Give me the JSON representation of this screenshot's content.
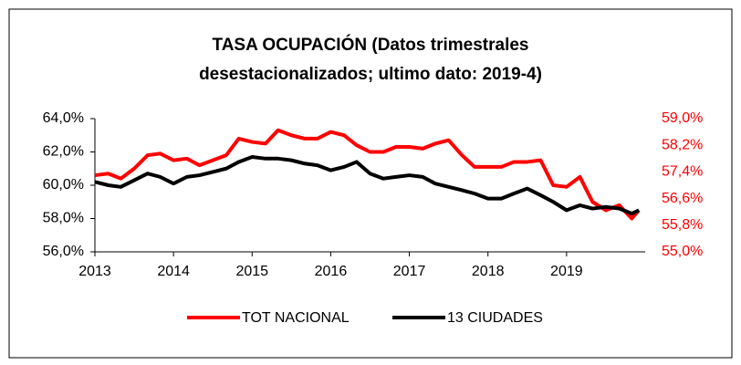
{
  "chart_data": {
    "type": "line",
    "title": [
      "TASA OCUPACIÓN (Datos trimestrales",
      "desestacionalizados; ultimo dato: 2019-4)"
    ],
    "x": [
      2013,
      2013.17,
      2013.33,
      2013.5,
      2013.67,
      2013.83,
      2014,
      2014.17,
      2014.33,
      2014.5,
      2014.67,
      2014.83,
      2015,
      2015.17,
      2015.33,
      2015.5,
      2015.67,
      2015.83,
      2016,
      2016.17,
      2016.33,
      2016.5,
      2016.67,
      2016.83,
      2017,
      2017.17,
      2017.33,
      2017.5,
      2017.67,
      2017.83,
      2018,
      2018.17,
      2018.33,
      2018.5,
      2018.67,
      2018.83,
      2019,
      2019.17,
      2019.33,
      2019.5,
      2019.67,
      2019.83,
      2019.92
    ],
    "series": [
      {
        "name": "TOT NACIONAL",
        "color": "#ff0000",
        "axis": "y2",
        "values": [
          57.3,
          57.35,
          57.2,
          57.5,
          57.9,
          57.95,
          57.75,
          57.8,
          57.6,
          57.75,
          57.9,
          58.4,
          58.3,
          58.25,
          58.65,
          58.5,
          58.4,
          58.4,
          58.6,
          58.5,
          58.2,
          58.0,
          58.0,
          58.15,
          58.15,
          58.1,
          58.25,
          58.35,
          57.9,
          57.55,
          57.55,
          57.55,
          57.7,
          57.7,
          57.75,
          57.0,
          56.95,
          57.25,
          56.5,
          56.25,
          56.4,
          56.0,
          56.25
        ]
      },
      {
        "name": "13 CIUDADES",
        "color": "#000000",
        "values": [
          60.2,
          60.0,
          59.9,
          60.3,
          60.7,
          60.5,
          60.1,
          60.5,
          60.6,
          60.8,
          61.0,
          61.4,
          61.7,
          61.6,
          61.6,
          61.5,
          61.3,
          61.2,
          60.9,
          61.1,
          61.4,
          60.7,
          60.4,
          60.5,
          60.6,
          60.5,
          60.1,
          59.9,
          59.7,
          59.5,
          59.2,
          59.2,
          59.5,
          59.8,
          59.4,
          59.0,
          58.5,
          58.8,
          58.6,
          58.7,
          58.6,
          58.3,
          58.5
        ]
      }
    ],
    "xlim": [
      2013,
      2020
    ],
    "xticks": [
      2013,
      2014,
      2015,
      2016,
      2017,
      2018,
      2019
    ],
    "ylim": [
      56,
      64
    ],
    "yticks": [
      {
        "value": 56,
        "label": "56,0%"
      },
      {
        "value": 58,
        "label": "58,0%"
      },
      {
        "value": 60,
        "label": "60,0%"
      },
      {
        "value": 62,
        "label": "62,0%"
      },
      {
        "value": 64,
        "label": "64,0%"
      }
    ],
    "y2lim": [
      55,
      59
    ],
    "y2ticks": [
      {
        "value": 55,
        "label": "55,0%"
      },
      {
        "value": 55.8,
        "label": "55,8%"
      },
      {
        "value": 56.6,
        "label": "56,6%"
      },
      {
        "value": 57.4,
        "label": "57,4%"
      },
      {
        "value": 58.2,
        "label": "58,2%"
      },
      {
        "value": 59,
        "label": "59,0%"
      }
    ],
    "y2color": "#ff0000",
    "legend": "bottom"
  }
}
